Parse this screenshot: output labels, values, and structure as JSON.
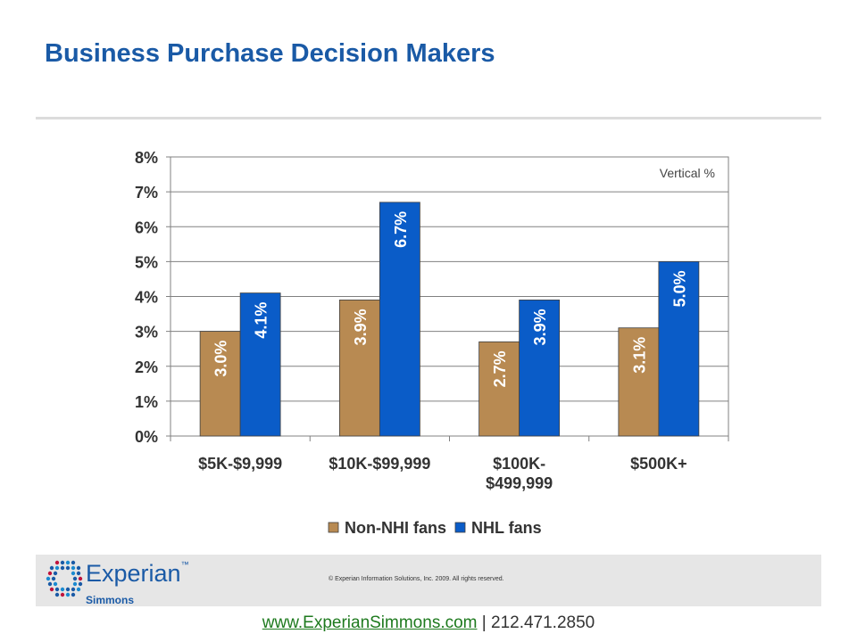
{
  "page": {
    "title": "Business Purchase Decision Makers",
    "copyright": "© Experian Information Solutions, Inc. 2009. All rights reserved.",
    "website": "www.ExperianSimmons.com",
    "phone_separator": " | ",
    "phone": "212.471.2850",
    "logo_word": "Experian",
    "logo_tm": "™",
    "logo_sub": "Simmons"
  },
  "colors": {
    "title": "#1a5aa6",
    "non_nhl": "#b88a52",
    "nhl": "#0a5cc8",
    "link": "#1e7a1e"
  },
  "chart_data": {
    "type": "bar",
    "title": "",
    "xlabel": "",
    "ylabel": "",
    "annotation": "Vertical %",
    "categories": [
      [
        "$5K-$9,999"
      ],
      [
        "$10K-$99,999"
      ],
      [
        "$100K-",
        "$499,999"
      ],
      [
        "$500K+"
      ]
    ],
    "series": [
      {
        "name": "Non-NHI fans",
        "values": [
          3.0,
          3.9,
          2.7,
          3.1
        ],
        "labels": [
          "3.0%",
          "3.9%",
          "2.7%",
          "3.1%"
        ],
        "color": "#b88a52"
      },
      {
        "name": "NHL fans",
        "values": [
          4.1,
          6.7,
          3.9,
          5.0
        ],
        "labels": [
          "4.1%",
          "6.7%",
          "3.9%",
          "5.0%"
        ],
        "color": "#0a5cc8"
      }
    ],
    "ylim": [
      0,
      8
    ],
    "yticks": [
      "0%",
      "1%",
      "2%",
      "3%",
      "4%",
      "5%",
      "6%",
      "7%",
      "8%"
    ],
    "grid": true,
    "legend": "bottom"
  }
}
